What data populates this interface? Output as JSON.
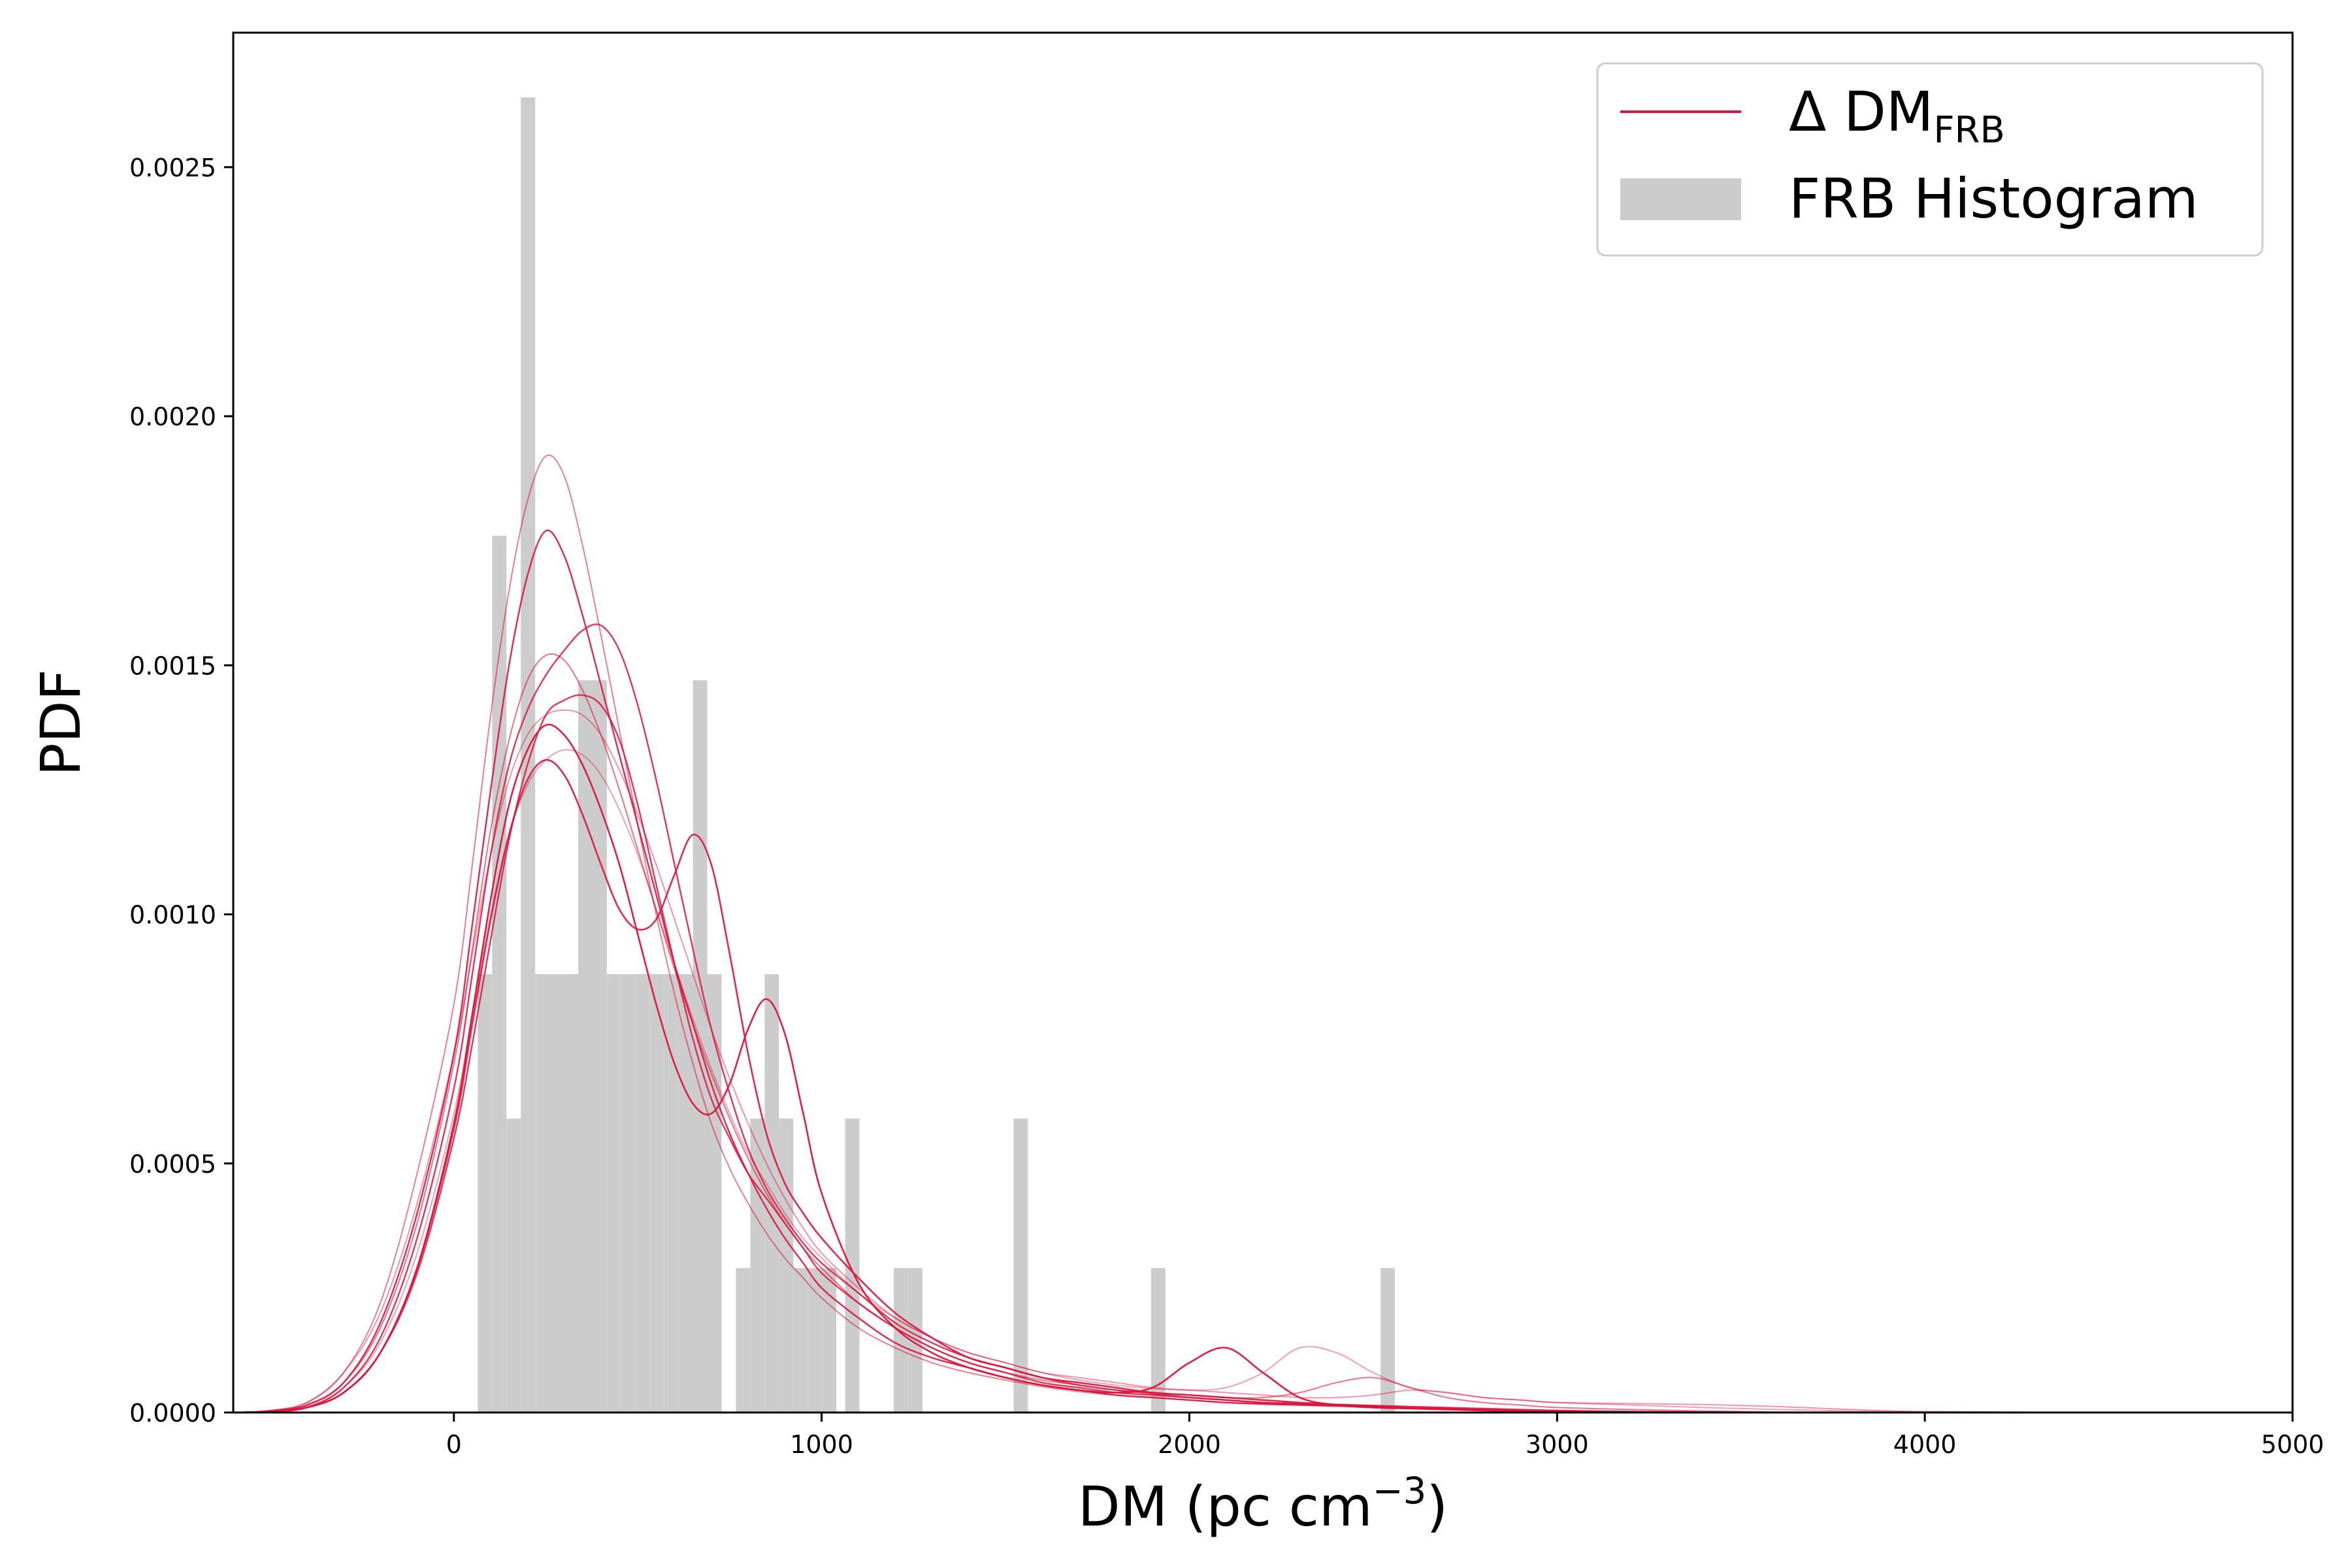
{
  "chart_data": {
    "type": "line",
    "xlabel": "DM (pc cm",
    "xlabel_sup": "−3",
    "xlabel_close": ")",
    "ylabel": "PDF",
    "xlim": [
      -600,
      5000
    ],
    "ylim": [
      0,
      0.00277
    ],
    "x_ticks": [
      0,
      1000,
      2000,
      3000,
      4000,
      5000
    ],
    "y_ticks": [
      0.0,
      0.0005,
      0.001,
      0.0015,
      0.002,
      0.0025
    ],
    "y_tick_labels": [
      "0.0000",
      "0.0005",
      "0.0010",
      "0.0015",
      "0.0020",
      "0.0025"
    ],
    "grid": false,
    "legend": {
      "position": "upper-right",
      "items": [
        {
          "label": "Δ DM",
          "sub": "FRB",
          "kind": "line",
          "color": "#DC143C"
        },
        {
          "label": "FRB Histogram",
          "kind": "patch",
          "color": "#CCCCCC"
        }
      ]
    },
    "histogram": {
      "color": "#CCCCCC",
      "bin_width": 38.8,
      "bars": [
        {
          "x0": 65,
          "x1": 104,
          "y": 0.00088
        },
        {
          "x0": 104,
          "x1": 143,
          "y": 0.00176
        },
        {
          "x0": 143,
          "x1": 182,
          "y": 0.00059
        },
        {
          "x0": 182,
          "x1": 221,
          "y": 0.00264
        },
        {
          "x0": 221,
          "x1": 260,
          "y": 0.00088
        },
        {
          "x0": 260,
          "x1": 299,
          "y": 0.00088
        },
        {
          "x0": 299,
          "x1": 338,
          "y": 0.00088
        },
        {
          "x0": 338,
          "x1": 377,
          "y": 0.00147
        },
        {
          "x0": 377,
          "x1": 416,
          "y": 0.00147
        },
        {
          "x0": 416,
          "x1": 455,
          "y": 0.00088
        },
        {
          "x0": 455,
          "x1": 494,
          "y": 0.00088
        },
        {
          "x0": 494,
          "x1": 533,
          "y": 0.00088
        },
        {
          "x0": 533,
          "x1": 572,
          "y": 0.00088
        },
        {
          "x0": 572,
          "x1": 611,
          "y": 0.00088
        },
        {
          "x0": 611,
          "x1": 650,
          "y": 0.00088
        },
        {
          "x0": 650,
          "x1": 689,
          "y": 0.00147
        },
        {
          "x0": 689,
          "x1": 728,
          "y": 0.00088
        },
        {
          "x0": 767,
          "x1": 806,
          "y": 0.00029
        },
        {
          "x0": 806,
          "x1": 845,
          "y": 0.00059
        },
        {
          "x0": 845,
          "x1": 884,
          "y": 0.00088
        },
        {
          "x0": 884,
          "x1": 923,
          "y": 0.00059
        },
        {
          "x0": 923,
          "x1": 962,
          "y": 0.00029
        },
        {
          "x0": 962,
          "x1": 1001,
          "y": 0.00029
        },
        {
          "x0": 1001,
          "x1": 1040,
          "y": 0.00029
        },
        {
          "x0": 1064,
          "x1": 1103,
          "y": 0.00059
        },
        {
          "x0": 1196,
          "x1": 1235,
          "y": 0.00029
        },
        {
          "x0": 1235,
          "x1": 1274,
          "y": 0.00029
        },
        {
          "x0": 1522,
          "x1": 1561,
          "y": 0.00059
        },
        {
          "x0": 1896,
          "x1": 1935,
          "y": 0.00029
        },
        {
          "x0": 2520,
          "x1": 2559,
          "y": 0.00029
        }
      ]
    },
    "curve_x": [
      -600,
      -500,
      -400,
      -300,
      -200,
      -100,
      0,
      50,
      100,
      150,
      200,
      250,
      300,
      350,
      400,
      450,
      500,
      550,
      600,
      650,
      700,
      750,
      800,
      850,
      900,
      950,
      1000,
      1100,
      1200,
      1300,
      1400,
      1500,
      1600,
      1700,
      1800,
      1900,
      2000,
      2100,
      2200,
      2300,
      2400,
      2500,
      2600,
      2700,
      2800,
      2900,
      3000,
      3200,
      3400,
      3600,
      3800,
      4000,
      4500,
      5000
    ],
    "series": [
      {
        "color": "#DC143C",
        "opacity": 0.85,
        "width": 2.4,
        "y": [
          0,
          2e-06,
          1e-05,
          4e-05,
          0.00012,
          0.00028,
          0.00055,
          0.00074,
          0.00095,
          0.00115,
          0.0013,
          0.0014,
          0.00143,
          0.00144,
          0.00142,
          0.00135,
          0.00122,
          0.00106,
          0.0009,
          0.00075,
          0.00063,
          0.00055,
          0.00048,
          0.00043,
          0.00038,
          0.00033,
          0.00028,
          0.00022,
          0.00017,
          0.00013,
          0.0001,
          8e-05,
          6e-05,
          5e-05,
          4e-05,
          3.5e-05,
          3e-05,
          2.5e-05,
          2e-05,
          1.8e-05,
          1.6e-05,
          1.4e-05,
          1.2e-05,
          1e-05,
          8e-06,
          6e-06,
          4e-06,
          2e-06,
          1e-06,
          0,
          0,
          0,
          0,
          0
        ]
      },
      {
        "color": "#DC143C",
        "opacity": 0.9,
        "width": 2.4,
        "y": [
          0,
          3e-06,
          1.5e-05,
          6e-05,
          0.00018,
          0.0004,
          0.00072,
          0.00098,
          0.00125,
          0.0015,
          0.00168,
          0.00177,
          0.00172,
          0.0016,
          0.00146,
          0.00132,
          0.00118,
          0.00104,
          0.0009,
          0.00078,
          0.00066,
          0.00056,
          0.00048,
          0.00041,
          0.00035,
          0.0003,
          0.00025,
          0.00019,
          0.00014,
          0.00011,
          9e-05,
          7e-05,
          5.5e-05,
          4.5e-05,
          3.5e-05,
          3e-05,
          2.5e-05,
          2e-05,
          1.7e-05,
          1.5e-05,
          1.3e-05,
          1.1e-05,
          9e-06,
          7e-06,
          5e-06,
          4e-06,
          3e-06,
          1e-06,
          0,
          0,
          0,
          0,
          0,
          0
        ]
      },
      {
        "color": "#DC143C",
        "opacity": 0.55,
        "width": 2.0,
        "y": [
          0,
          4e-06,
          2e-05,
          8e-05,
          0.00022,
          0.00048,
          0.00082,
          0.0011,
          0.0014,
          0.00165,
          0.00183,
          0.00192,
          0.00188,
          0.00174,
          0.00156,
          0.00137,
          0.00118,
          0.001,
          0.00084,
          0.0007,
          0.00058,
          0.00049,
          0.00042,
          0.00036,
          0.00031,
          0.00027,
          0.00023,
          0.00017,
          0.00013,
          0.0001,
          8e-05,
          6.5e-05,
          5.2e-05,
          4.2e-05,
          3.5e-05,
          3e-05,
          2.5e-05,
          2e-05,
          1.8e-05,
          1.6e-05,
          1.4e-05,
          1.2e-05,
          1e-05,
          8e-06,
          6e-06,
          5e-06,
          4e-06,
          2e-06,
          1e-06,
          0,
          0,
          0,
          0,
          0
        ]
      },
      {
        "color": "#DC143C",
        "opacity": 0.85,
        "width": 2.4,
        "y": [
          0,
          2e-06,
          1e-05,
          5e-05,
          0.00015,
          0.00035,
          0.00065,
          0.00088,
          0.00112,
          0.0013,
          0.00141,
          0.00148,
          0.00153,
          0.00157,
          0.00158,
          0.00153,
          0.00142,
          0.00127,
          0.0011,
          0.00093,
          0.00077,
          0.00064,
          0.00053,
          0.00045,
          0.00039,
          0.00034,
          0.0003,
          0.00024,
          0.00018,
          0.00014,
          0.00011,
          9e-05,
          7e-05,
          5.5e-05,
          4.5e-05,
          3.8e-05,
          3e-05,
          2.5e-05,
          2e-05,
          1.7e-05,
          1.4e-05,
          1.2e-05,
          1e-05,
          8e-06,
          6e-06,
          4e-06,
          3e-06,
          1e-06,
          0,
          0,
          0,
          0,
          0,
          0
        ]
      },
      {
        "color": "#DC143C",
        "opacity": 0.9,
        "width": 2.6,
        "y": [
          0,
          2e-06,
          1e-05,
          4e-05,
          0.00012,
          0.00029,
          0.00057,
          0.00078,
          0.00099,
          0.00116,
          0.00127,
          0.00131,
          0.00128,
          0.0012,
          0.0011,
          0.00101,
          0.00097,
          0.00099,
          0.00108,
          0.00116,
          0.0011,
          0.00092,
          0.00072,
          0.00056,
          0.00046,
          0.0004,
          0.00035,
          0.00027,
          0.0002,
          0.00015,
          0.00011,
          9e-05,
          7e-05,
          6e-05,
          5e-05,
          4e-05,
          3.5e-05,
          3e-05,
          2.5e-05,
          2e-05,
          1.6e-05,
          1.3e-05,
          1e-05,
          8e-06,
          6e-06,
          4e-06,
          3e-06,
          1e-06,
          0,
          0,
          0,
          0,
          0,
          0
        ]
      },
      {
        "color": "#DC143C",
        "opacity": 0.95,
        "width": 2.6,
        "y": [
          0,
          2e-06,
          1e-05,
          4e-05,
          0.00012,
          0.00029,
          0.00058,
          0.0008,
          0.00103,
          0.00122,
          0.00133,
          0.00138,
          0.00136,
          0.0013,
          0.00121,
          0.0011,
          0.00096,
          0.00082,
          0.0007,
          0.00062,
          0.0006,
          0.00066,
          0.00077,
          0.00083,
          0.00076,
          0.0006,
          0.00044,
          0.00026,
          0.00017,
          0.00012,
          9e-05,
          7e-05,
          5.5e-05,
          4.5e-05,
          4e-05,
          5e-05,
          0.0001,
          0.00013,
          8e-05,
          3e-05,
          1.5e-05,
          1e-05,
          8e-06,
          6e-06,
          4e-06,
          3e-06,
          2e-06,
          1e-06,
          0,
          0,
          0,
          0,
          0,
          0
        ]
      },
      {
        "color": "#DC143C",
        "opacity": 0.4,
        "width": 2.0,
        "y": [
          0,
          3e-06,
          1.2e-05,
          5e-05,
          0.00014,
          0.00032,
          0.0006,
          0.0008,
          0.001,
          0.00116,
          0.00126,
          0.00131,
          0.00133,
          0.00132,
          0.00128,
          0.00121,
          0.00112,
          0.00101,
          0.0009,
          0.00079,
          0.00069,
          0.0006,
          0.00052,
          0.00046,
          0.0004,
          0.00035,
          0.00031,
          0.00024,
          0.00019,
          0.00015,
          0.00012,
          0.0001,
          8e-05,
          6.5e-05,
          5.5e-05,
          4.8e-05,
          4.5e-05,
          5e-05,
          8e-05,
          0.00013,
          0.00012,
          8e-05,
          5e-05,
          4e-05,
          3e-05,
          2.5e-05,
          2e-05,
          1.5e-05,
          1e-05,
          6e-06,
          3e-06,
          1e-06,
          0,
          0
        ]
      },
      {
        "color": "#DC143C",
        "opacity": 0.6,
        "width": 2.0,
        "y": [
          0,
          3e-06,
          1.5e-05,
          6e-05,
          0.00017,
          0.00038,
          0.0007,
          0.00093,
          0.00117,
          0.00135,
          0.00147,
          0.00152,
          0.00151,
          0.00145,
          0.00136,
          0.00125,
          0.00113,
          0.00101,
          0.00089,
          0.00078,
          0.00068,
          0.00059,
          0.00051,
          0.00044,
          0.00038,
          0.00033,
          0.00029,
          0.00022,
          0.00017,
          0.00013,
          0.0001,
          8e-05,
          6.5e-05,
          5.5e-05,
          4.5e-05,
          4e-05,
          3.5e-05,
          3e-05,
          3e-05,
          4e-05,
          6e-05,
          7e-05,
          5e-05,
          3e-05,
          2e-05,
          1.5e-05,
          1e-05,
          6e-06,
          3e-06,
          1e-06,
          0,
          0,
          0,
          0
        ]
      },
      {
        "color": "#DC143C",
        "opacity": 0.45,
        "width": 2.0,
        "y": [
          0,
          4e-06,
          2e-05,
          8e-05,
          0.0002,
          0.00042,
          0.00072,
          0.00092,
          0.00112,
          0.00127,
          0.00136,
          0.0014,
          0.00141,
          0.0014,
          0.00136,
          0.00129,
          0.0012,
          0.0011,
          0.00099,
          0.00088,
          0.00077,
          0.00067,
          0.00058,
          0.0005,
          0.00043,
          0.00037,
          0.00032,
          0.00025,
          0.00019,
          0.00015,
          0.00012,
          0.0001,
          8e-05,
          7e-05,
          6e-05,
          5e-05,
          4.5e-05,
          4e-05,
          3.5e-05,
          3e-05,
          3e-05,
          3.5e-05,
          4.5e-05,
          4e-05,
          3e-05,
          2.5e-05,
          2e-05,
          1.8e-05,
          1.6e-05,
          1.2e-05,
          6e-06,
          2e-06,
          0,
          0
        ]
      }
    ]
  }
}
